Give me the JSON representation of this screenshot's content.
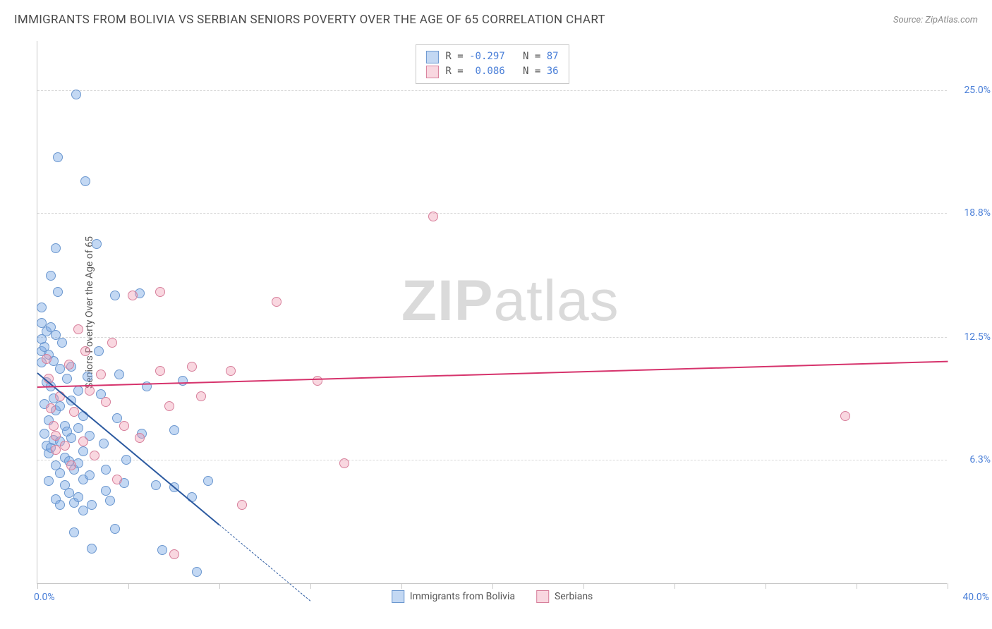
{
  "title": "IMMIGRANTS FROM BOLIVIA VS SERBIAN SENIORS POVERTY OVER THE AGE OF 65 CORRELATION CHART",
  "source": "Source: ZipAtlas.com",
  "watermark": {
    "bold": "ZIP",
    "light": "atlas"
  },
  "y_axis_title": "Seniors Poverty Over the Age of 65",
  "chart": {
    "type": "scatter",
    "background_color": "#ffffff",
    "grid_color": "#d8d8d8",
    "axis_color": "#c8c8c8",
    "xlim": [
      0,
      40
    ],
    "ylim": [
      0,
      27.5
    ],
    "x_label_min": "0.0%",
    "x_label_max": "40.0%",
    "x_ticks": [
      0,
      4,
      8,
      12,
      16,
      20,
      24,
      28,
      32,
      36,
      40
    ],
    "y_gridlines": [
      {
        "value": 6.3,
        "label": "6.3%"
      },
      {
        "value": 12.5,
        "label": "12.5%"
      },
      {
        "value": 18.8,
        "label": "18.8%"
      },
      {
        "value": 25.0,
        "label": "25.0%"
      }
    ],
    "tick_label_color": "#4a7fd8",
    "tick_label_fontsize": 14
  },
  "series": {
    "bolivia": {
      "label": "Immigrants from Bolivia",
      "fill": "rgba(122,168,228,0.45)",
      "stroke": "#6b97cf",
      "line_color": "#2c5aa0",
      "trend": {
        "x1": 0,
        "y1": 10.7,
        "x2": 8.0,
        "y2": 3.0,
        "dash_to_x": 12.0
      },
      "points": [
        [
          0.2,
          13.2
        ],
        [
          0.2,
          12.4
        ],
        [
          0.2,
          11.8
        ],
        [
          0.2,
          11.2
        ],
        [
          0.2,
          14.0
        ],
        [
          0.3,
          12.0
        ],
        [
          0.3,
          9.1
        ],
        [
          0.3,
          7.6
        ],
        [
          0.4,
          12.8
        ],
        [
          0.4,
          10.2
        ],
        [
          0.4,
          7.0
        ],
        [
          0.5,
          11.6
        ],
        [
          0.5,
          8.3
        ],
        [
          0.5,
          6.6
        ],
        [
          0.5,
          5.2
        ],
        [
          0.6,
          15.6
        ],
        [
          0.6,
          13.0
        ],
        [
          0.6,
          10.0
        ],
        [
          0.6,
          6.9
        ],
        [
          0.7,
          11.3
        ],
        [
          0.7,
          9.4
        ],
        [
          0.7,
          7.3
        ],
        [
          0.8,
          17.0
        ],
        [
          0.8,
          12.6
        ],
        [
          0.8,
          8.8
        ],
        [
          0.8,
          6.0
        ],
        [
          0.8,
          4.3
        ],
        [
          0.9,
          21.6
        ],
        [
          0.9,
          14.8
        ],
        [
          1.0,
          10.9
        ],
        [
          1.0,
          9.0
        ],
        [
          1.0,
          7.2
        ],
        [
          1.0,
          5.6
        ],
        [
          1.0,
          4.0
        ],
        [
          1.1,
          12.2
        ],
        [
          1.2,
          8.0
        ],
        [
          1.2,
          6.4
        ],
        [
          1.2,
          5.0
        ],
        [
          1.3,
          10.4
        ],
        [
          1.3,
          7.7
        ],
        [
          1.4,
          6.2
        ],
        [
          1.4,
          4.6
        ],
        [
          1.5,
          11.0
        ],
        [
          1.5,
          9.3
        ],
        [
          1.5,
          7.4
        ],
        [
          1.6,
          5.8
        ],
        [
          1.6,
          4.1
        ],
        [
          1.6,
          2.6
        ],
        [
          1.7,
          24.8
        ],
        [
          1.8,
          9.8
        ],
        [
          1.8,
          7.9
        ],
        [
          1.8,
          6.1
        ],
        [
          1.8,
          4.4
        ],
        [
          2.0,
          8.5
        ],
        [
          2.0,
          6.7
        ],
        [
          2.0,
          5.3
        ],
        [
          2.0,
          3.7
        ],
        [
          2.1,
          20.4
        ],
        [
          2.2,
          10.5
        ],
        [
          2.3,
          7.5
        ],
        [
          2.3,
          5.5
        ],
        [
          2.4,
          4.0
        ],
        [
          2.4,
          1.8
        ],
        [
          2.6,
          17.2
        ],
        [
          2.7,
          11.8
        ],
        [
          2.8,
          9.6
        ],
        [
          2.9,
          7.1
        ],
        [
          3.0,
          5.8
        ],
        [
          3.0,
          4.7
        ],
        [
          3.4,
          14.6
        ],
        [
          3.5,
          8.4
        ],
        [
          3.6,
          10.6
        ],
        [
          3.8,
          5.1
        ],
        [
          3.9,
          6.3
        ],
        [
          4.5,
          14.7
        ],
        [
          4.6,
          7.6
        ],
        [
          4.8,
          10.0
        ],
        [
          5.2,
          5.0
        ],
        [
          5.5,
          1.7
        ],
        [
          6.0,
          7.8
        ],
        [
          6.0,
          4.9
        ],
        [
          6.4,
          10.3
        ],
        [
          6.8,
          4.4
        ],
        [
          7.0,
          0.6
        ],
        [
          7.5,
          5.2
        ],
        [
          3.2,
          4.2
        ],
        [
          3.4,
          2.8
        ]
      ]
    },
    "serbians": {
      "label": "Serbians",
      "fill": "rgba(239,154,178,0.40)",
      "stroke": "#d77f9b",
      "line_color": "#d6336c",
      "trend": {
        "x1": 0,
        "y1": 10.0,
        "x2": 40.0,
        "y2": 11.3
      },
      "points": [
        [
          0.4,
          11.4
        ],
        [
          0.5,
          10.4
        ],
        [
          0.6,
          8.9
        ],
        [
          0.7,
          8.0
        ],
        [
          0.8,
          6.8
        ],
        [
          0.8,
          7.5
        ],
        [
          1.0,
          9.5
        ],
        [
          1.2,
          7.0
        ],
        [
          1.4,
          11.1
        ],
        [
          1.5,
          6.0
        ],
        [
          1.6,
          8.7
        ],
        [
          1.8,
          12.9
        ],
        [
          2.0,
          7.2
        ],
        [
          2.1,
          11.8
        ],
        [
          2.3,
          9.8
        ],
        [
          2.5,
          6.5
        ],
        [
          2.8,
          10.6
        ],
        [
          3.0,
          9.2
        ],
        [
          3.3,
          12.2
        ],
        [
          3.5,
          5.3
        ],
        [
          3.8,
          8.0
        ],
        [
          4.2,
          14.6
        ],
        [
          4.5,
          7.4
        ],
        [
          5.4,
          14.8
        ],
        [
          5.4,
          10.8
        ],
        [
          5.8,
          9.0
        ],
        [
          6.0,
          1.5
        ],
        [
          6.8,
          11.0
        ],
        [
          7.2,
          9.5
        ],
        [
          8.5,
          10.8
        ],
        [
          9.0,
          4.0
        ],
        [
          10.5,
          14.3
        ],
        [
          12.3,
          10.3
        ],
        [
          13.5,
          6.1
        ],
        [
          17.4,
          18.6
        ],
        [
          35.5,
          8.5
        ]
      ]
    }
  },
  "stats": {
    "rows": [
      {
        "series": "bolivia",
        "r_label": "R =",
        "r_value": "-0.297",
        "n_label": "N =",
        "n_value": "87"
      },
      {
        "series": "serbians",
        "r_label": "R =",
        "r_value": " 0.086",
        "n_label": "N =",
        "n_value": "36"
      }
    ],
    "label_color": "#555555",
    "value_color": "#4a7fd8"
  },
  "legend": [
    {
      "series": "bolivia",
      "label": "Immigrants from Bolivia"
    },
    {
      "series": "serbians",
      "label": "Serbians"
    }
  ]
}
